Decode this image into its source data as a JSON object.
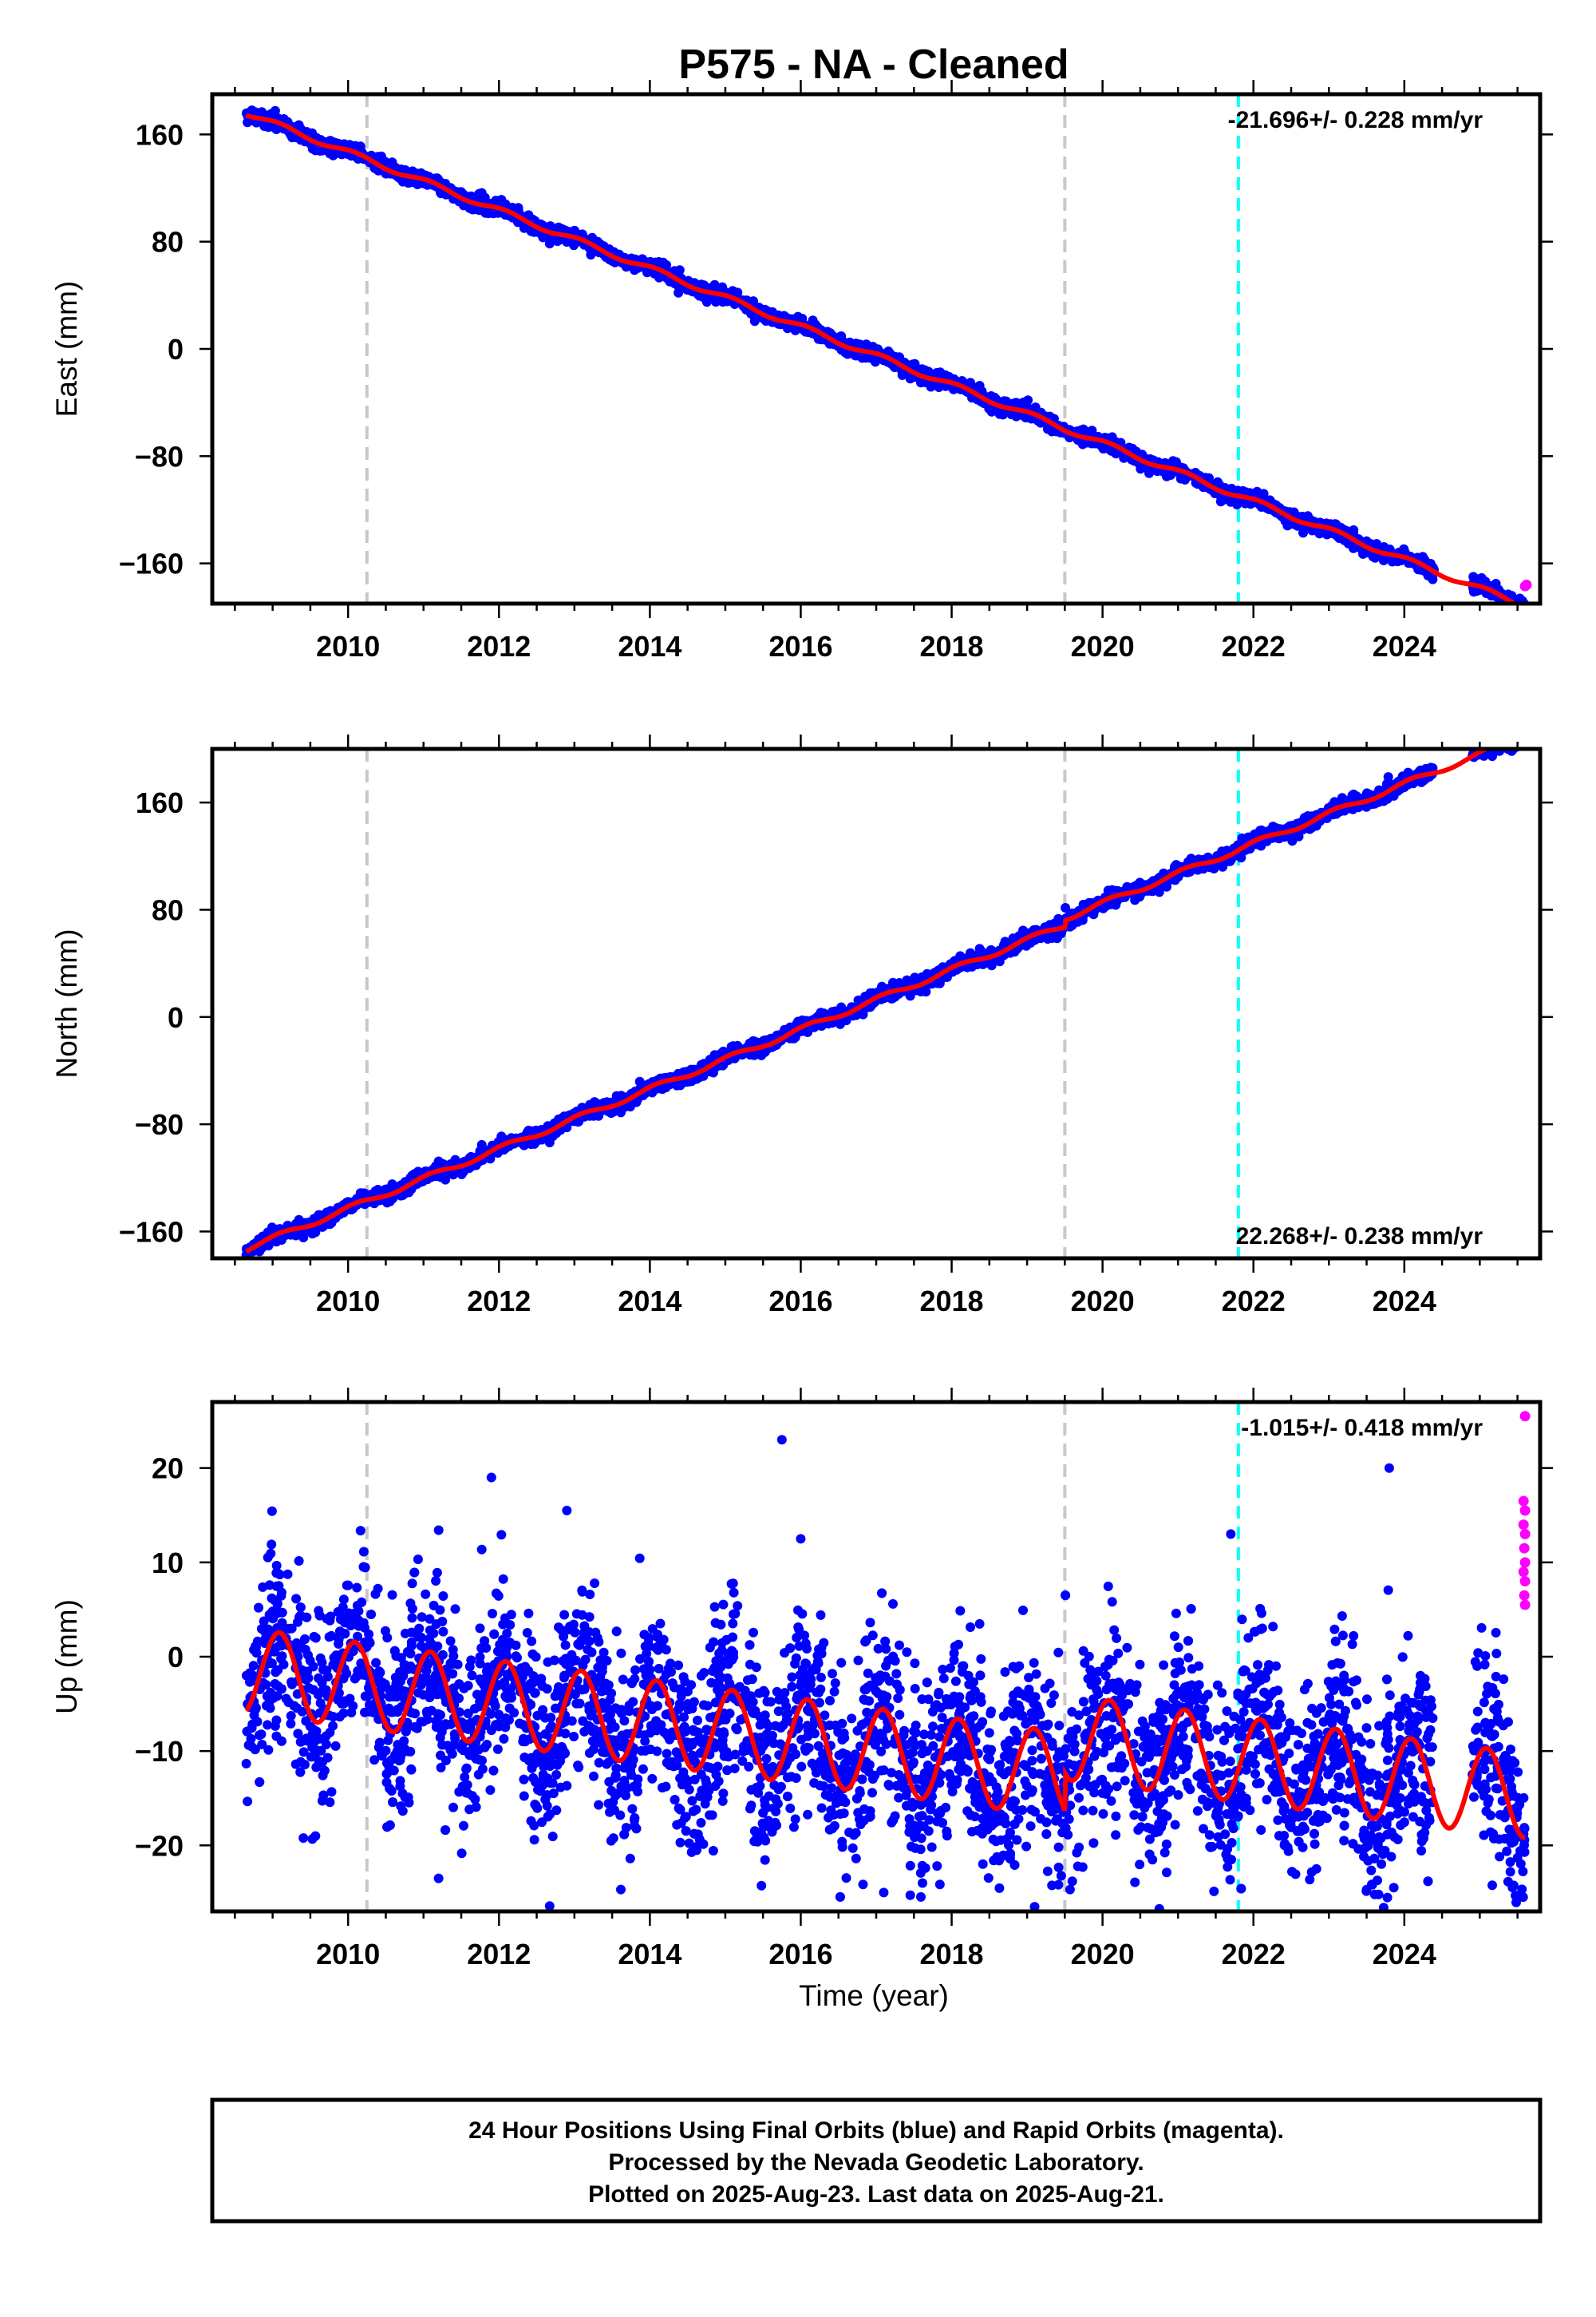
{
  "title": "P575  - NA - Cleaned",
  "xlabel": "Time (year)",
  "footer": {
    "line1": "24 Hour Positions Using Final Orbits (blue) and Rapid Orbits (magenta).",
    "line2": "Processed by the Nevada Geodetic Laboratory.",
    "line3": "Plotted on 2025-Aug-23. Last data on 2025-Aug-21."
  },
  "colors": {
    "final_orbits": "#0000ff",
    "rapid_orbits": "#ff00ff",
    "model_fit": "#ff0000",
    "equipment_change": "#c8c8c8",
    "earthquake": "#00ffff"
  },
  "chart_data": [
    {
      "type": "scatter",
      "name": "east",
      "ylabel": "East (mm)",
      "rate_text": "-21.696+/- 0.228 mm/yr",
      "rate_position": "top-right",
      "xlim": [
        2008.2,
        2025.8
      ],
      "ylim": [
        -190,
        190
      ],
      "xticks": [
        2010,
        2012,
        2014,
        2016,
        2018,
        2020,
        2022,
        2024
      ],
      "yticks": [
        160,
        80,
        0,
        -80,
        -160
      ],
      "ytick_labels": [
        "160",
        "80",
        "0",
        "−80",
        "−160"
      ],
      "rate_mm_per_yr": -21.696,
      "fit_model": {
        "start_year": 2008.65,
        "start_value": 176,
        "rate": -21.696,
        "seasonal_amplitude": 2.0,
        "offsets": [
          {
            "year": 2019.5,
            "value": 0
          }
        ],
        "gap": [
          2024.4,
          2024.9
        ]
      },
      "scatter_spread": 2.5,
      "rapid_points": [
        [
          2025.6,
          -177
        ],
        [
          2025.62,
          -176
        ]
      ],
      "vlines_gray": [
        2010.25,
        2019.5
      ],
      "vlines_cyan": [
        2021.8
      ]
    },
    {
      "type": "scatter",
      "name": "north",
      "ylabel": "North (mm)",
      "rate_text": "22.268+/- 0.238 mm/yr",
      "rate_position": "bottom-right",
      "xlim": [
        2008.2,
        2025.8
      ],
      "ylim": [
        -180,
        200
      ],
      "xticks": [
        2010,
        2012,
        2014,
        2016,
        2018,
        2020,
        2022,
        2024
      ],
      "yticks": [
        160,
        80,
        0,
        -80,
        -160
      ],
      "ytick_labels": [
        "160",
        "80",
        "0",
        "−80",
        "−160"
      ],
      "rate_mm_per_yr": 22.268,
      "fit_model": {
        "start_year": 2008.65,
        "start_value": -173,
        "rate": 22.268,
        "seasonal_amplitude": 2.0,
        "offsets": [
          {
            "year": 2019.5,
            "value": 5
          }
        ],
        "gap": [
          2024.4,
          2024.9
        ]
      },
      "scatter_spread": 2.5,
      "rapid_points": [
        [
          2025.62,
          203
        ],
        [
          2025.64,
          204
        ]
      ],
      "vlines_gray": [
        2010.25,
        2019.5
      ],
      "vlines_cyan": [
        2021.8
      ]
    },
    {
      "type": "scatter",
      "name": "up",
      "ylabel": "Up (mm)",
      "rate_text": "-1.015+/- 0.418 mm/yr",
      "rate_position": "top-right",
      "xlim": [
        2008.2,
        2025.8
      ],
      "ylim": [
        -27,
        27
      ],
      "xticks": [
        2010,
        2012,
        2014,
        2016,
        2018,
        2020,
        2022,
        2024
      ],
      "yticks": [
        20,
        10,
        0,
        -10,
        -20
      ],
      "ytick_labels": [
        "20",
        "10",
        "0",
        "−10",
        "−20"
      ],
      "rate_mm_per_yr": -1.015,
      "fit_model": {
        "start_year": 2008.65,
        "start_value": -1.5,
        "rate": -1.015,
        "seasonal_amplitude": 4.5,
        "offsets": [
          {
            "year": 2019.5,
            "value": 4
          }
        ],
        "gap": [
          2024.4,
          2024.9
        ]
      },
      "scatter_spread": 5.0,
      "outliers": [
        [
          2011.9,
          19
        ],
        [
          2012.9,
          15.5
        ],
        [
          2015.75,
          23
        ],
        [
          2016.0,
          12.5
        ],
        [
          2017.1,
          -25
        ],
        [
          2019.1,
          -26.5
        ],
        [
          2011.2,
          -23.5
        ],
        [
          2023.2,
          -19.5
        ],
        [
          2023.8,
          20
        ],
        [
          2021.7,
          13
        ]
      ],
      "rapid_points": [
        [
          2025.6,
          25.5
        ],
        [
          2025.58,
          16.5
        ],
        [
          2025.6,
          15.5
        ],
        [
          2025.58,
          14
        ],
        [
          2025.6,
          13
        ],
        [
          2025.59,
          11.5
        ],
        [
          2025.6,
          10
        ],
        [
          2025.58,
          9
        ],
        [
          2025.6,
          8
        ],
        [
          2025.59,
          6.5
        ],
        [
          2025.6,
          5.5
        ]
      ],
      "vlines_gray": [
        2010.25,
        2019.5
      ],
      "vlines_cyan": [
        2021.8
      ]
    }
  ]
}
